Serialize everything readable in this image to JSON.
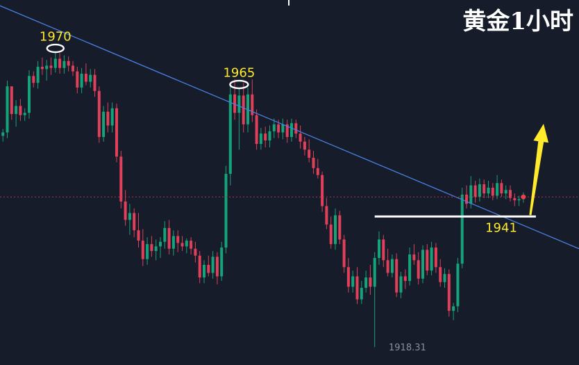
{
  "chart_data": {
    "type": "candlestick",
    "title": "黄金1小时",
    "colors": {
      "background": "#161c2a",
      "up": "#16a37a",
      "down": "#e0405a",
      "trendline": "#4a7fe0",
      "support": "#ffffff",
      "annotation": "#ffea2c",
      "current_price_line": "#b0364a",
      "marker": "#e8404e"
    },
    "annotations": [
      {
        "label": "1970",
        "price": 1970,
        "type": "high",
        "marker": "ellipse"
      },
      {
        "label": "1965",
        "price": 1965,
        "type": "high",
        "marker": "ellipse"
      },
      {
        "label": "1941",
        "price": 1941,
        "type": "support"
      }
    ],
    "low_label": "1918.31",
    "trendline": {
      "from_price": 1977.6,
      "to_price": 1935.4,
      "style": "descending resistance"
    },
    "support_level": 1941,
    "current_price": 1944.4,
    "projection": {
      "direction": "up",
      "arrow_color": "#ffea2c"
    },
    "ylim": [
      1915.2,
      1978.6
    ],
    "candles": [
      [
        1955.0,
        1956.2,
        1954.0,
        1955.6
      ],
      [
        1955.6,
        1964.6,
        1954.6,
        1963.6
      ],
      [
        1963.6,
        1963.6,
        1957.8,
        1958.8
      ],
      [
        1958.8,
        1961.2,
        1956.6,
        1960.2
      ],
      [
        1960.2,
        1961.4,
        1957.6,
        1958.6
      ],
      [
        1958.6,
        1959.8,
        1957.6,
        1959.0
      ],
      [
        1959.0,
        1966.4,
        1958.0,
        1965.4
      ],
      [
        1965.4,
        1966.2,
        1963.4,
        1964.2
      ],
      [
        1964.2,
        1968.0,
        1963.2,
        1967.0
      ],
      [
        1967.0,
        1968.6,
        1965.6,
        1966.6
      ],
      [
        1966.6,
        1968.2,
        1964.6,
        1967.2
      ],
      [
        1967.2,
        1968.6,
        1965.6,
        1966.8
      ],
      [
        1966.8,
        1969.6,
        1966.0,
        1968.4
      ],
      [
        1968.4,
        1969.4,
        1965.8,
        1966.8
      ],
      [
        1966.8,
        1969.0,
        1965.8,
        1968.0
      ],
      [
        1968.0,
        1968.8,
        1966.2,
        1967.2
      ],
      [
        1967.2,
        1968.0,
        1965.4,
        1966.2
      ],
      [
        1966.2,
        1967.0,
        1962.4,
        1963.4
      ],
      [
        1963.4,
        1966.8,
        1962.4,
        1965.8
      ],
      [
        1965.8,
        1967.6,
        1963.8,
        1964.4
      ],
      [
        1964.4,
        1966.6,
        1963.4,
        1965.6
      ],
      [
        1965.6,
        1966.6,
        1961.8,
        1962.8
      ],
      [
        1962.8,
        1963.6,
        1953.8,
        1954.8
      ],
      [
        1954.8,
        1960.2,
        1954.0,
        1959.2
      ],
      [
        1959.2,
        1960.8,
        1955.6,
        1956.8
      ],
      [
        1956.8,
        1960.8,
        1955.6,
        1959.8
      ],
      [
        1959.8,
        1960.6,
        1950.4,
        1951.4
      ],
      [
        1951.4,
        1952.4,
        1942.4,
        1943.6
      ],
      [
        1943.6,
        1945.6,
        1939.4,
        1940.4
      ],
      [
        1940.4,
        1943.2,
        1937.8,
        1941.6
      ],
      [
        1941.6,
        1942.4,
        1937.4,
        1938.6
      ],
      [
        1938.6,
        1941.6,
        1935.6,
        1936.8
      ],
      [
        1936.8,
        1938.8,
        1932.4,
        1933.6
      ],
      [
        1933.6,
        1937.4,
        1932.6,
        1936.2
      ],
      [
        1936.2,
        1937.6,
        1934.0,
        1935.0
      ],
      [
        1935.0,
        1937.0,
        1933.4,
        1935.8
      ],
      [
        1935.8,
        1937.4,
        1933.8,
        1936.6
      ],
      [
        1936.6,
        1940.2,
        1935.4,
        1939.0
      ],
      [
        1939.0,
        1940.4,
        1934.4,
        1935.4
      ],
      [
        1935.4,
        1938.6,
        1934.2,
        1937.6
      ],
      [
        1937.6,
        1938.6,
        1934.8,
        1936.4
      ],
      [
        1936.4,
        1937.6,
        1935.0,
        1935.8
      ],
      [
        1935.8,
        1937.2,
        1934.6,
        1936.8
      ],
      [
        1936.8,
        1937.4,
        1934.4,
        1935.4
      ],
      [
        1935.4,
        1936.6,
        1933.0,
        1934.2
      ],
      [
        1934.2,
        1935.0,
        1929.4,
        1930.4
      ],
      [
        1930.4,
        1933.4,
        1929.4,
        1932.6
      ],
      [
        1932.6,
        1934.2,
        1930.6,
        1931.2
      ],
      [
        1931.2,
        1935.0,
        1930.2,
        1934.0
      ],
      [
        1934.0,
        1934.8,
        1929.2,
        1930.6
      ],
      [
        1930.6,
        1936.6,
        1929.8,
        1935.6
      ],
      [
        1935.6,
        1949.8,
        1934.6,
        1948.4
      ],
      [
        1948.4,
        1963.6,
        1946.4,
        1962.2
      ],
      [
        1962.2,
        1964.8,
        1957.8,
        1959.0
      ],
      [
        1959.0,
        1963.2,
        1952.6,
        1962.0
      ],
      [
        1962.0,
        1964.2,
        1955.6,
        1957.0
      ],
      [
        1957.0,
        1963.4,
        1955.6,
        1962.2
      ],
      [
        1962.2,
        1964.8,
        1957.4,
        1958.6
      ],
      [
        1958.6,
        1959.6,
        1952.6,
        1953.6
      ],
      [
        1953.6,
        1956.4,
        1952.6,
        1955.4
      ],
      [
        1955.4,
        1956.6,
        1953.0,
        1954.2
      ],
      [
        1954.2,
        1956.8,
        1953.0,
        1955.8
      ],
      [
        1955.8,
        1958.0,
        1954.6,
        1957.0
      ],
      [
        1957.0,
        1957.8,
        1954.6,
        1955.6
      ],
      [
        1955.6,
        1958.0,
        1954.4,
        1957.0
      ],
      [
        1957.0,
        1957.8,
        1953.8,
        1954.8
      ],
      [
        1954.8,
        1958.0,
        1954.0,
        1957.2
      ],
      [
        1957.2,
        1957.8,
        1954.6,
        1955.4
      ],
      [
        1955.4,
        1956.8,
        1952.8,
        1954.0
      ],
      [
        1954.0,
        1954.8,
        1951.6,
        1952.6
      ],
      [
        1952.6,
        1954.4,
        1950.4,
        1951.2
      ],
      [
        1951.2,
        1952.4,
        1948.4,
        1949.4
      ],
      [
        1949.4,
        1951.0,
        1947.6,
        1948.2
      ],
      [
        1948.2,
        1948.8,
        1941.8,
        1942.8
      ],
      [
        1942.8,
        1944.2,
        1938.8,
        1939.6
      ],
      [
        1939.6,
        1941.0,
        1935.4,
        1936.2
      ],
      [
        1936.2,
        1942.4,
        1935.2,
        1941.2
      ],
      [
        1941.2,
        1942.0,
        1936.2,
        1937.0
      ],
      [
        1937.0,
        1937.8,
        1931.2,
        1932.2
      ],
      [
        1932.2,
        1933.8,
        1927.8,
        1928.8
      ],
      [
        1928.8,
        1931.6,
        1927.8,
        1930.6
      ],
      [
        1930.6,
        1932.2,
        1925.8,
        1926.6
      ],
      [
        1926.6,
        1929.8,
        1925.8,
        1928.6
      ],
      [
        1928.6,
        1931.6,
        1927.8,
        1930.4
      ],
      [
        1930.4,
        1932.6,
        1927.4,
        1928.8
      ],
      [
        1928.8,
        1934.8,
        1918.3,
        1933.8
      ],
      [
        1933.8,
        1938.4,
        1932.6,
        1937.0
      ],
      [
        1937.0,
        1937.8,
        1932.2,
        1933.4
      ],
      [
        1933.4,
        1935.4,
        1930.6,
        1931.2
      ],
      [
        1931.2,
        1934.4,
        1930.4,
        1933.6
      ],
      [
        1933.6,
        1934.6,
        1927.0,
        1927.8
      ],
      [
        1927.8,
        1931.4,
        1926.8,
        1930.6
      ],
      [
        1930.6,
        1931.8,
        1928.4,
        1929.8
      ],
      [
        1929.8,
        1935.6,
        1929.0,
        1934.4
      ],
      [
        1934.4,
        1936.2,
        1932.6,
        1933.4
      ],
      [
        1933.4,
        1934.8,
        1929.2,
        1930.2
      ],
      [
        1930.2,
        1936.0,
        1929.4,
        1935.2
      ],
      [
        1935.2,
        1936.2,
        1930.8,
        1931.6
      ],
      [
        1931.6,
        1936.6,
        1930.8,
        1935.6
      ],
      [
        1935.6,
        1936.4,
        1931.2,
        1932.2
      ],
      [
        1932.2,
        1933.6,
        1928.8,
        1929.6
      ],
      [
        1929.6,
        1932.0,
        1928.6,
        1931.0
      ],
      [
        1931.0,
        1931.8,
        1923.6,
        1924.6
      ],
      [
        1924.6,
        1926.0,
        1923.0,
        1925.4
      ],
      [
        1925.4,
        1933.8,
        1924.4,
        1932.8
      ],
      [
        1932.8,
        1946.0,
        1932.0,
        1944.8
      ],
      [
        1944.8,
        1946.4,
        1942.4,
        1943.2
      ],
      [
        1943.2,
        1948.0,
        1942.4,
        1946.4
      ],
      [
        1946.4,
        1947.2,
        1943.4,
        1944.4
      ],
      [
        1944.4,
        1947.6,
        1943.6,
        1946.6
      ],
      [
        1946.6,
        1947.4,
        1944.2,
        1945.0
      ],
      [
        1945.0,
        1947.2,
        1944.2,
        1946.0
      ],
      [
        1946.0,
        1946.8,
        1943.8,
        1944.6
      ],
      [
        1944.6,
        1948.2,
        1944.0,
        1946.8
      ],
      [
        1946.8,
        1947.4,
        1944.4,
        1945.0
      ],
      [
        1945.0,
        1946.4,
        1944.0,
        1945.6
      ],
      [
        1945.6,
        1946.4,
        1943.6,
        1944.2
      ],
      [
        1944.2,
        1945.0,
        1942.8,
        1943.8
      ],
      [
        1943.8,
        1944.6,
        1942.8,
        1944.0
      ],
      [
        1944.0,
        1945.2,
        1943.4,
        1944.4
      ]
    ]
  }
}
